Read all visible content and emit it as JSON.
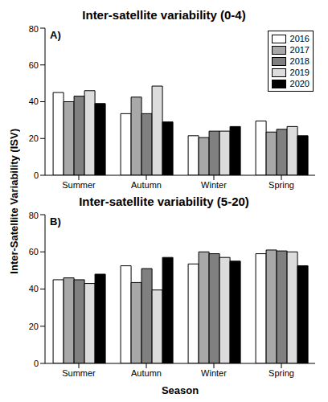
{
  "chart_data": [
    {
      "type": "bar",
      "title": "Inter-satellite variability (0-4)",
      "annotations": [
        "A)"
      ],
      "categories": [
        "Summer",
        "Autumn",
        "Winter",
        "Spring"
      ],
      "series": [
        {
          "name": "2016",
          "color": "#ffffff",
          "values": [
            45,
            33.5,
            21.5,
            29.5
          ]
        },
        {
          "name": "2017",
          "color": "#a8a8a8",
          "values": [
            40,
            42.5,
            20.5,
            23.5
          ]
        },
        {
          "name": "2018",
          "color": "#808080",
          "values": [
            43,
            33.5,
            24,
            25
          ]
        },
        {
          "name": "2019",
          "color": "#dcdcdc",
          "values": [
            46,
            48.5,
            24,
            26.5
          ]
        },
        {
          "name": "2020",
          "color": "#000000",
          "values": [
            39,
            29,
            26.5,
            21.5
          ]
        }
      ],
      "ylim": [
        0,
        80
      ],
      "yticks": [
        0,
        20,
        40,
        60,
        80
      ],
      "legend": "upper right"
    },
    {
      "type": "bar",
      "title": "Inter-satellite variability (5-20)",
      "annotations": [
        "B)"
      ],
      "x_label": "Season",
      "y_label": "Inter-Satellite Variability (ISV)",
      "categories": [
        "Summer",
        "Autumn",
        "Winter",
        "Spring"
      ],
      "series": [
        {
          "name": "2016",
          "color": "#ffffff",
          "values": [
            45,
            52.5,
            53.5,
            59
          ]
        },
        {
          "name": "2017",
          "color": "#a8a8a8",
          "values": [
            46,
            43.5,
            60,
            61
          ]
        },
        {
          "name": "2018",
          "color": "#808080",
          "values": [
            45,
            51,
            59,
            60.5
          ]
        },
        {
          "name": "2019",
          "color": "#dcdcdc",
          "values": [
            43,
            39.5,
            57,
            60
          ]
        },
        {
          "name": "2020",
          "color": "#000000",
          "values": [
            48,
            57,
            55,
            52.5
          ]
        }
      ],
      "ylim": [
        0,
        80
      ],
      "yticks": [
        0,
        20,
        40,
        60,
        80
      ]
    }
  ]
}
